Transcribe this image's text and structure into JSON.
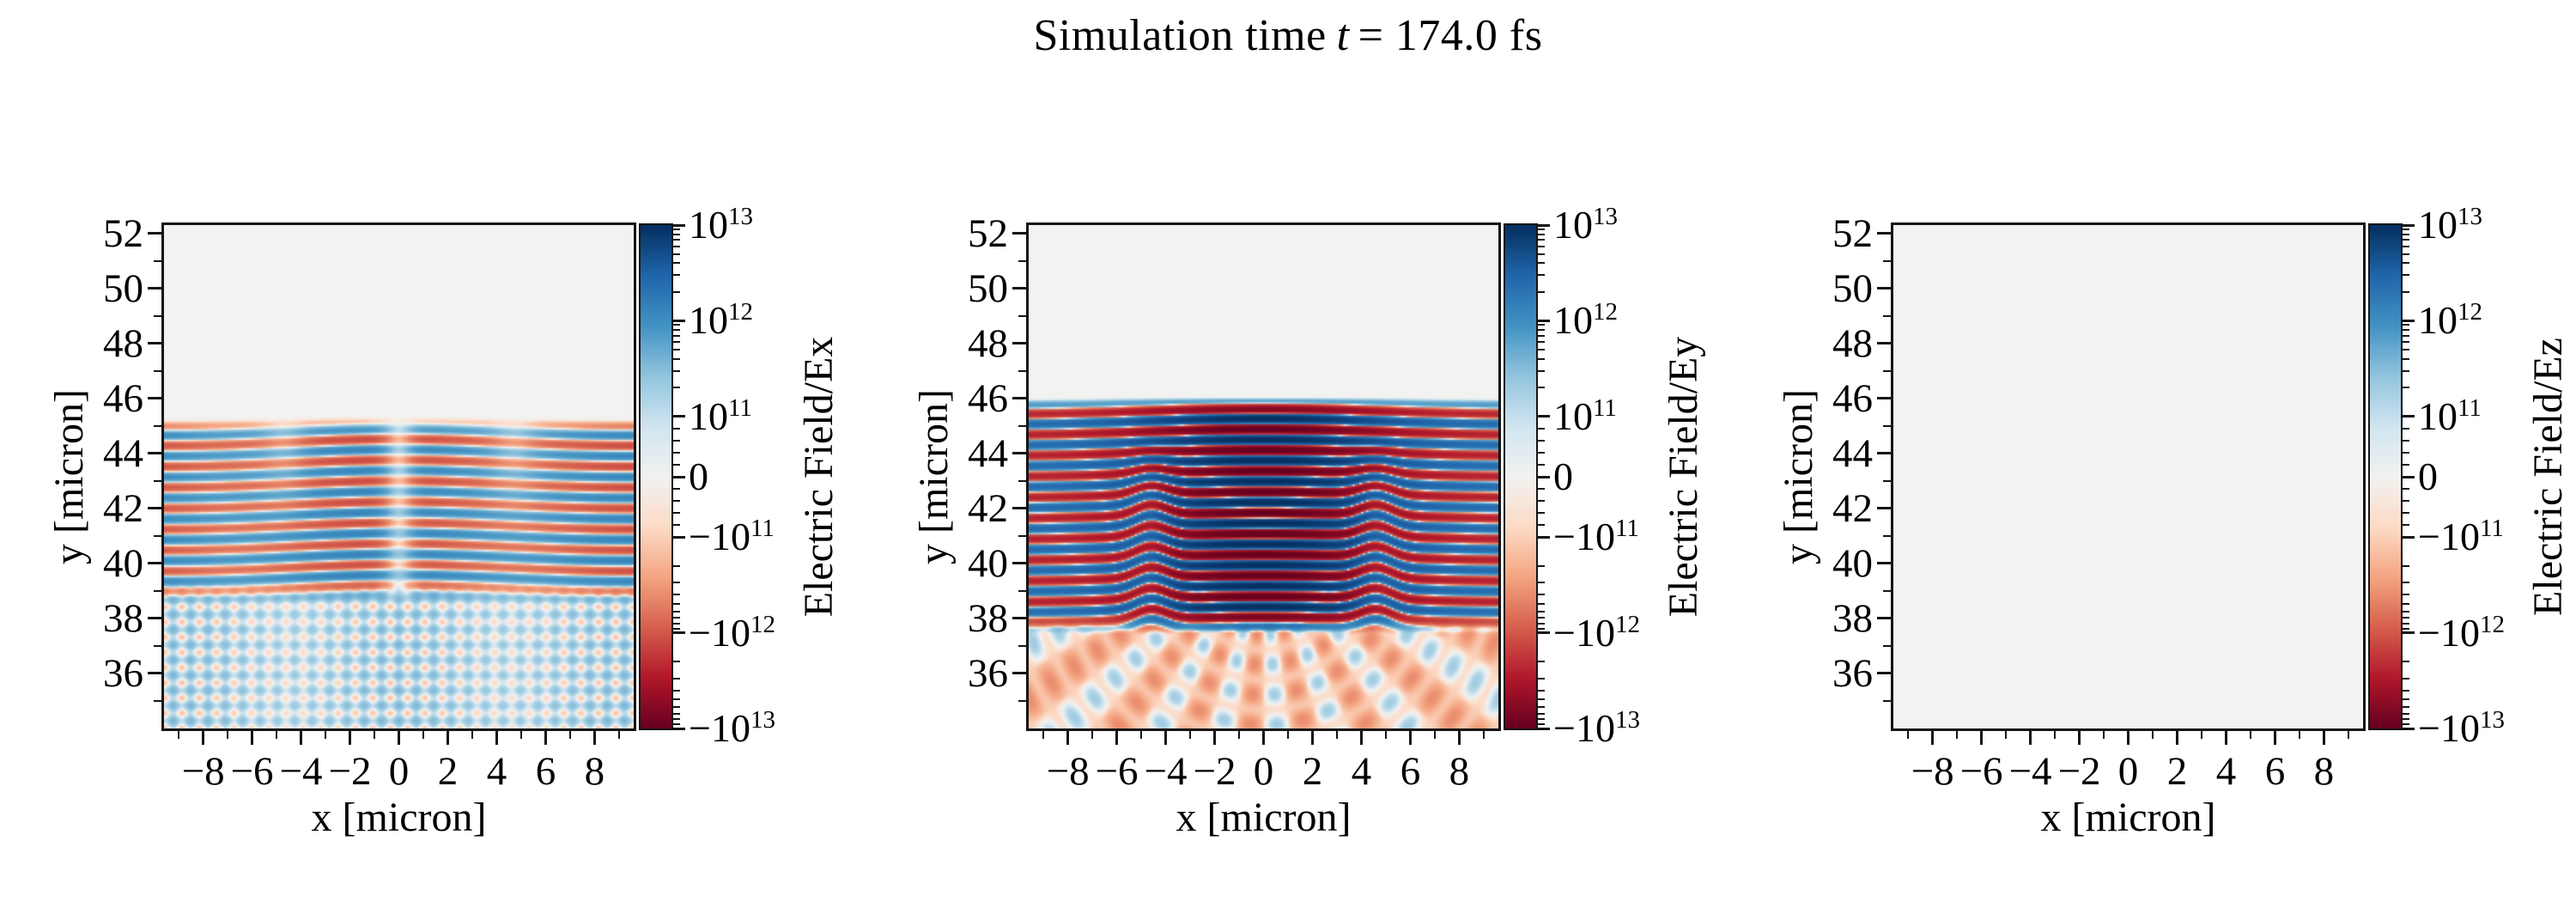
{
  "title": {
    "prefix": "Simulation time",
    "var": "t",
    "suffix": "= 174.0 fs"
  },
  "figure": {
    "background": "#ffffff",
    "spine_color": "#151515",
    "text_color": "#000000"
  },
  "chart_data": {
    "type": "heatmap",
    "figure_title": "Simulation time t = 174.0 fs",
    "simulation_time_fs": 174.0,
    "n_panels": 3,
    "x_axis": {
      "label": "x [micron]",
      "min": -9.6,
      "max": 9.6,
      "minor_tick_step": 1,
      "major_ticks": [
        {
          "v": -8,
          "label": "−8"
        },
        {
          "v": -6,
          "label": "−6"
        },
        {
          "v": -4,
          "label": "−4"
        },
        {
          "v": -2,
          "label": "−2"
        },
        {
          "v": 0,
          "label": "0"
        },
        {
          "v": 2,
          "label": "2"
        },
        {
          "v": 4,
          "label": "4"
        },
        {
          "v": 6,
          "label": "6"
        },
        {
          "v": 8,
          "label": "8"
        }
      ]
    },
    "y_axis": {
      "label": "y [micron]",
      "min": 34.0,
      "max": 52.3,
      "minor_tick_step": 1,
      "major_ticks": [
        {
          "v": 52,
          "label": "52"
        },
        {
          "v": 50,
          "label": "50"
        },
        {
          "v": 48,
          "label": "48"
        },
        {
          "v": 46,
          "label": "46"
        },
        {
          "v": 44,
          "label": "44"
        },
        {
          "v": 42,
          "label": "42"
        },
        {
          "v": 40,
          "label": "40"
        },
        {
          "v": 38,
          "label": "38"
        },
        {
          "v": 36,
          "label": "36"
        }
      ]
    },
    "colorscale": {
      "type": "symlog",
      "vmin": -10000000000000.0,
      "vmax": 10000000000000.0,
      "linthresh": 100000000000.0,
      "lin_frac": 0.12,
      "decade_frac": 0.19,
      "colormap_name": "RdBu",
      "stops": [
        [
          0.0,
          "#67001f"
        ],
        [
          0.1,
          "#b2182b"
        ],
        [
          0.2,
          "#d6604d"
        ],
        [
          0.3,
          "#f4a582"
        ],
        [
          0.4,
          "#fddbc7"
        ],
        [
          0.5,
          "#f2f2f0"
        ],
        [
          0.6,
          "#d1e5f0"
        ],
        [
          0.7,
          "#92c5de"
        ],
        [
          0.8,
          "#4393c3"
        ],
        [
          0.9,
          "#2166ac"
        ],
        [
          1.0,
          "#053061"
        ]
      ],
      "ticks": [
        {
          "base": "10",
          "exp": "13",
          "value": 10000000000000.0
        },
        {
          "base": "10",
          "exp": "12",
          "value": 1000000000000.0
        },
        {
          "base": "10",
          "exp": "11",
          "value": 100000000000.0
        },
        {
          "base": "0",
          "exp": "",
          "value": 0
        },
        {
          "base": "−10",
          "exp": "11",
          "value": -100000000000.0
        },
        {
          "base": "−10",
          "exp": "12",
          "value": -1000000000000.0
        },
        {
          "base": "−10",
          "exp": "13",
          "value": -10000000000000.0
        }
      ]
    },
    "panels": [
      {
        "id": "Ex",
        "colorbar_label": "Electric Field/Ex",
        "description": "Transverse field Ex: pale alternating red/blue horizontal laser wavefronts between y=39 and y=45.3 micron, with a narrow null seam at x=0 and amplitude breaks near |x|=4.7; weak pale-blue criss-cross interference lattice with salmon nodes below y=39; zero field (uniform grey) above y=45.4.",
        "peak_field": 1300000000000.0,
        "pattern": {
          "kind": "stripes_lattice",
          "y_top": 45.35,
          "y_bot": 39.1,
          "wavelength": 0.76,
          "amp": 1300000000000.0,
          "gap_sigma": 0.5,
          "gap_depth": 0.85,
          "break_x": 4.7,
          "break_depth": 0.55,
          "lattice_amp": 260000000000.0,
          "lattice_bias": 120000000000.0,
          "lattice_wavelength": 1.05
        }
      },
      {
        "id": "Ey",
        "colorbar_label": "Electric Field/Ey",
        "description": "Main laser field Ey: strong saturated alternating dark-red/dark-blue horizontal wavefronts between y=38 and y=46 micron (strongest near x=0, phase kinks near |x|=4.6); fan of pale salmon/blue interference rays converging toward bottom centre below y=38; zero field above y=46.",
        "peak_field": 10500000000000.0,
        "pattern": {
          "kind": "stripes_fan",
          "y_top": 46.05,
          "y_bot": 38.0,
          "wavelength": 0.76,
          "amp": 10500000000000.0,
          "amp_floor": 0.24,
          "amp_sigma": 4.3,
          "kink_x": 4.6,
          "fan_amp": 300000000000.0,
          "fan_bias": -100000000000.0,
          "fan_rays": 20,
          "fan_wavelength": 1.1
        }
      },
      {
        "id": "Ez",
        "colorbar_label": "Electric Field/Ez",
        "description": "Out-of-plane field Ez: uniformly zero over the whole window (flat light-grey map).",
        "peak_field": 0,
        "pattern": {
          "kind": "zero"
        }
      }
    ]
  }
}
